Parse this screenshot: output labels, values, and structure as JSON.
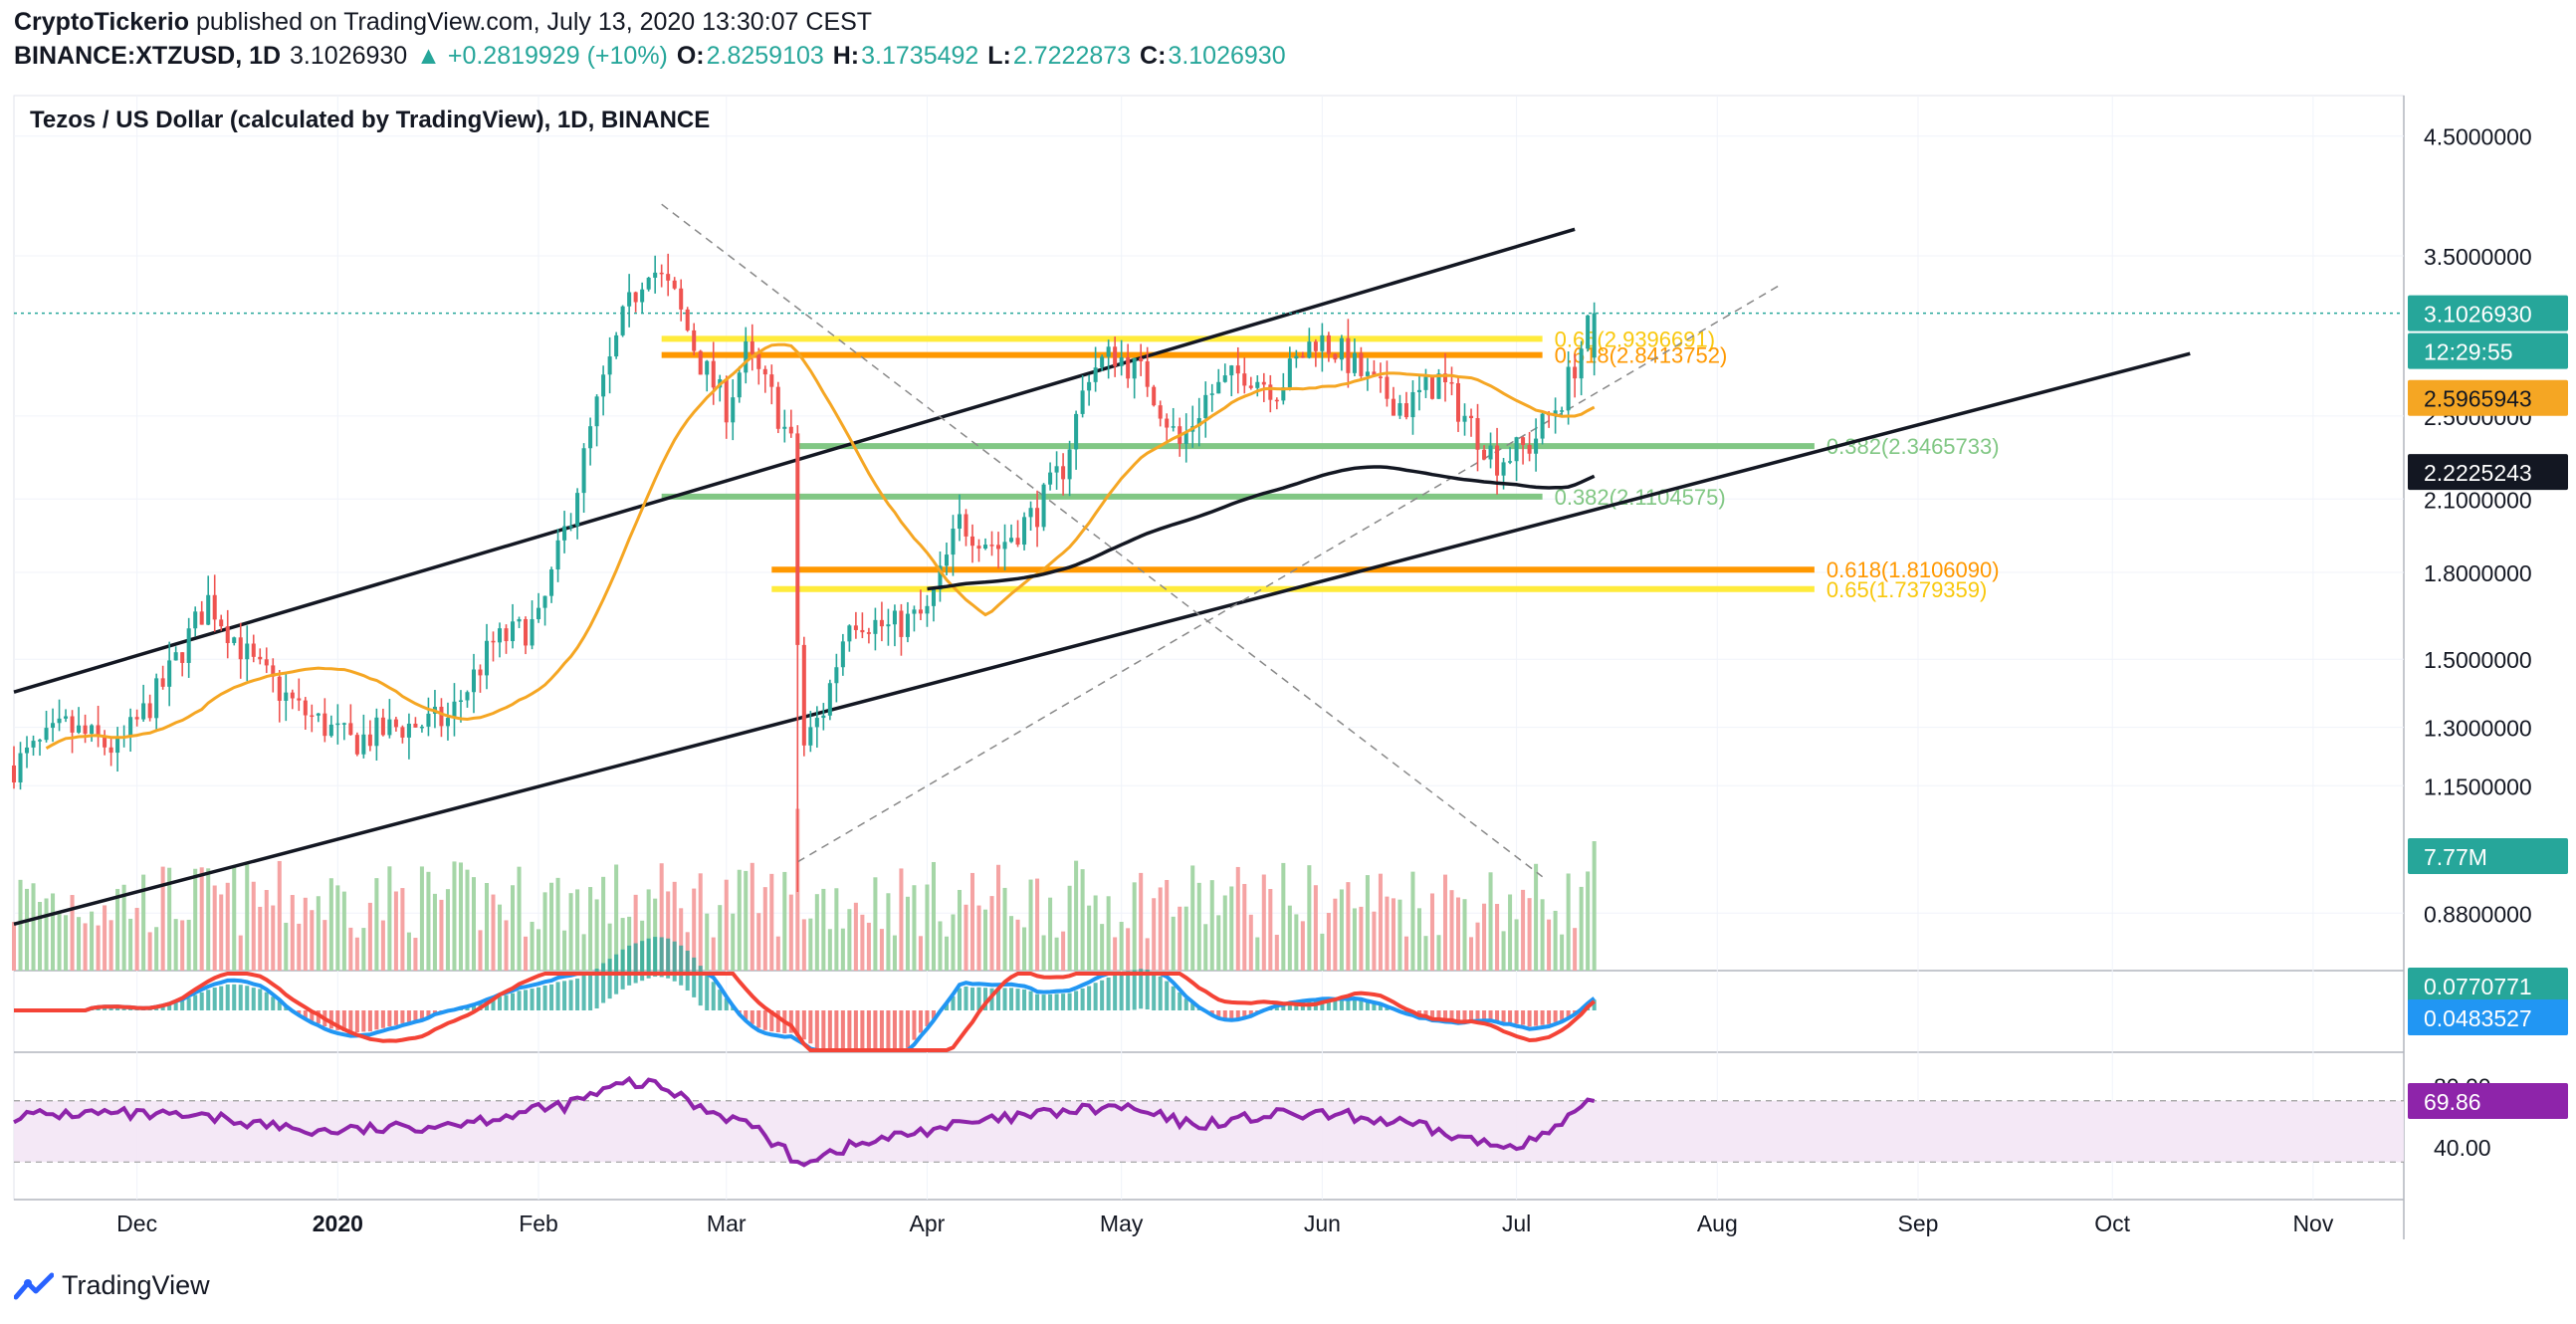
{
  "header": {
    "publisher": "CryptoTickerio",
    "published_text": "published on TradingView.com, July 13, 2020 13:30:07 CEST",
    "symbol": "BINANCE:XTZUSD, 1D",
    "last": "3.1026930",
    "change": "▲ +0.2819929 (+10%)",
    "o_label": "O:",
    "o": "2.8259103",
    "h_label": "H:",
    "h": "3.1735492",
    "l_label": "L:",
    "l": "2.7222873",
    "c_label": "C:",
    "c": "3.1026930"
  },
  "chart_title": "Tezos / US Dollar (calculated by TradingView), 1D, BINANCE",
  "footer": {
    "brand": "TradingView",
    "logo_icon": "tradingview-logo-icon"
  },
  "colors": {
    "up": "#26a69a",
    "down": "#ef5350",
    "vol_up": "#a5d6a7",
    "vol_down": "#f5a3a3",
    "ma_orange": "#f5a623",
    "ma_black": "#131722",
    "fib_yellow": "#ffeb3b",
    "fib_orange": "#ff9800",
    "fib_green": "#81c784",
    "rsi": "#8e24aa",
    "macd_blue": "#2196f3",
    "macd_red": "#f44336"
  },
  "chart_data": {
    "type": "candlestick",
    "scale": "log",
    "ylim": [
      0.78,
      4.9
    ],
    "y_ticks": [
      "4.5000000",
      "3.5000000",
      "2.5000000",
      "2.1000000",
      "1.8000000",
      "1.5000000",
      "1.3000000",
      "1.1500000",
      "0.8800000"
    ],
    "x_ticks": [
      "Dec",
      "2020",
      "Feb",
      "Mar",
      "Apr",
      "May",
      "Jun",
      "Jul",
      "Aug",
      "Sep",
      "Oct",
      "Nov"
    ],
    "price_anchors": [
      [
        "2019-11-12",
        1.2
      ],
      [
        "2019-11-20",
        1.3
      ],
      [
        "2019-11-28",
        1.24
      ],
      [
        "2019-12-05",
        1.42
      ],
      [
        "2019-12-12",
        1.7
      ],
      [
        "2019-12-19",
        1.48
      ],
      [
        "2019-12-26",
        1.35
      ],
      [
        "2020-01-03",
        1.26
      ],
      [
        "2020-01-10",
        1.3
      ],
      [
        "2020-01-18",
        1.32
      ],
      [
        "2020-01-25",
        1.55
      ],
      [
        "2020-02-01",
        1.62
      ],
      [
        "2020-02-06",
        2.05
      ],
      [
        "2020-02-10",
        2.55
      ],
      [
        "2020-02-14",
        3.05
      ],
      [
        "2020-02-18",
        3.45
      ],
      [
        "2020-02-22",
        3.2
      ],
      [
        "2020-02-26",
        2.8
      ],
      [
        "2020-03-01",
        2.55
      ],
      [
        "2020-03-04",
        2.85
      ],
      [
        "2020-03-08",
        2.6
      ],
      [
        "2020-03-11",
        2.35
      ],
      [
        "2020-03-12",
        1.55
      ],
      [
        "2020-03-13",
        1.25
      ],
      [
        "2020-03-16",
        1.35
      ],
      [
        "2020-03-20",
        1.65
      ],
      [
        "2020-03-26",
        1.6
      ],
      [
        "2020-04-01",
        1.65
      ],
      [
        "2020-04-06",
        2.0
      ],
      [
        "2020-04-12",
        1.9
      ],
      [
        "2020-04-18",
        2.05
      ],
      [
        "2020-04-22",
        2.25
      ],
      [
        "2020-04-26",
        2.75
      ],
      [
        "2020-04-30",
        2.85
      ],
      [
        "2020-05-05",
        2.7
      ],
      [
        "2020-05-10",
        2.35
      ],
      [
        "2020-05-14",
        2.6
      ],
      [
        "2020-05-20",
        2.75
      ],
      [
        "2020-05-25",
        2.65
      ],
      [
        "2020-05-31",
        2.95
      ],
      [
        "2020-06-04",
        2.85
      ],
      [
        "2020-06-09",
        2.65
      ],
      [
        "2020-06-14",
        2.55
      ],
      [
        "2020-06-19",
        2.7
      ],
      [
        "2020-06-24",
        2.45
      ],
      [
        "2020-06-28",
        2.28
      ],
      [
        "2020-07-03",
        2.35
      ],
      [
        "2020-07-08",
        2.6
      ],
      [
        "2020-07-13",
        3.1
      ]
    ],
    "x_start": "2019-11-12",
    "x_end": "2020-11-15",
    "last_date": "2020-07-13",
    "current_price_label": "3.1026930",
    "countdown_label": "12:29:55",
    "ma_short_label": "2.5965943",
    "ma_long_label": "2.2225243",
    "volume_label": "7.77M",
    "fib_levels": [
      {
        "label": "0.65(2.9396691)",
        "price": 2.9397,
        "color": "yellow",
        "from": "2020-02-20",
        "to": "2020-07-05"
      },
      {
        "label": "0.618(2.8413752)",
        "price": 2.8414,
        "color": "orange",
        "from": "2020-02-20",
        "to": "2020-07-05"
      },
      {
        "label": "0.382(2.3465733)",
        "price": 2.3466,
        "color": "green",
        "from": "2020-03-12",
        "to": "2020-08-16"
      },
      {
        "label": "0.382(2.1104575)",
        "price": 2.1105,
        "color": "green",
        "from": "2020-02-20",
        "to": "2020-07-05"
      },
      {
        "label": "0.618(1.8106090)",
        "price": 1.8106,
        "color": "orange",
        "from": "2020-03-08",
        "to": "2020-08-16"
      },
      {
        "label": "0.65(1.7379359)",
        "price": 1.7379,
        "color": "yellow",
        "from": "2020-03-08",
        "to": "2020-08-16"
      }
    ],
    "channel_upper": [
      [
        "2019-11-12",
        1.4
      ],
      [
        "2020-07-10",
        3.7
      ]
    ],
    "channel_lower": [
      [
        "2019-11-12",
        0.86
      ],
      [
        "2020-10-13",
        2.85
      ]
    ],
    "diag_down": [
      [
        "2020-02-20",
        3.9
      ],
      [
        "2020-07-05",
        0.95
      ]
    ],
    "diag_up": [
      [
        "2020-03-12",
        0.98
      ],
      [
        "2020-08-11",
        3.3
      ]
    ],
    "ma_long_start": [
      "2020-04-01",
      1.62
    ],
    "macd_labels": [
      "0.0770771",
      "0.0483527"
    ],
    "rsi": {
      "ticks": [
        "80.00",
        "40.00"
      ],
      "value_label": "69.86",
      "anchors": [
        [
          "2019-11-12",
          60
        ],
        [
          "2019-11-25",
          62
        ],
        [
          "2019-12-05",
          60
        ],
        [
          "2019-12-15",
          58
        ],
        [
          "2019-12-28",
          50
        ],
        [
          "2020-01-10",
          52
        ],
        [
          "2020-01-22",
          57
        ],
        [
          "2020-02-05",
          67
        ],
        [
          "2020-02-15",
          82
        ],
        [
          "2020-02-20",
          79
        ],
        [
          "2020-02-26",
          66
        ],
        [
          "2020-03-05",
          54
        ],
        [
          "2020-03-12",
          30
        ],
        [
          "2020-03-20",
          40
        ],
        [
          "2020-04-02",
          52
        ],
        [
          "2020-04-20",
          62
        ],
        [
          "2020-05-01",
          66
        ],
        [
          "2020-05-12",
          54
        ],
        [
          "2020-05-25",
          61
        ],
        [
          "2020-06-05",
          60
        ],
        [
          "2020-06-15",
          54
        ],
        [
          "2020-06-28",
          40
        ],
        [
          "2020-07-05",
          46
        ],
        [
          "2020-07-13",
          69.86
        ]
      ]
    }
  }
}
